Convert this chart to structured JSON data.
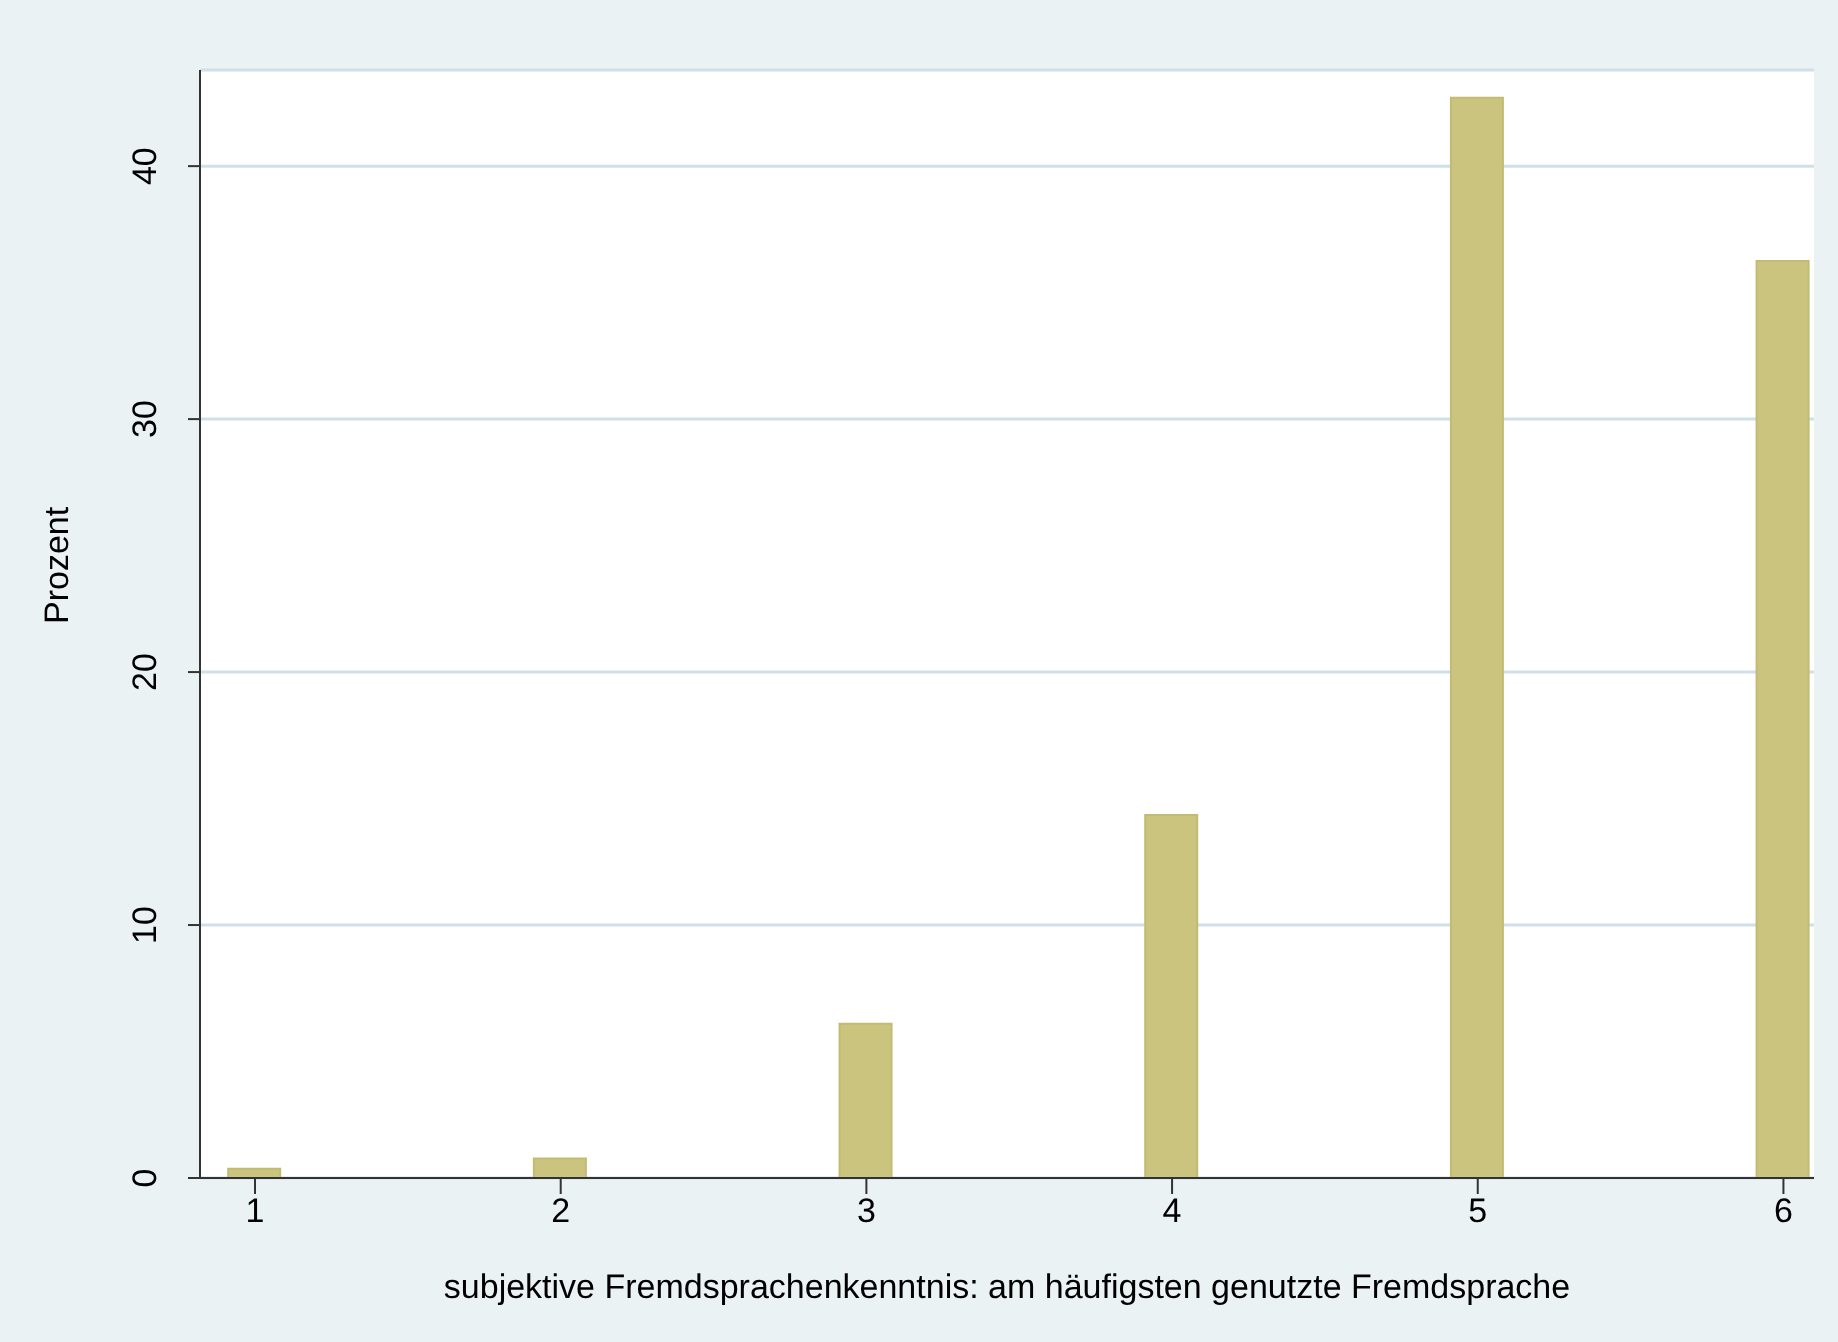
{
  "chart_data": {
    "type": "bar",
    "xlabel": "subjektive Fremdsprachenkenntnis: am häufigsten genutzte Fremdsprache",
    "ylabel": "Prozent",
    "x": [
      1,
      2,
      3,
      4,
      5,
      6
    ],
    "values": [
      0.37,
      0.77,
      6.1,
      14.35,
      42.7,
      36.25
    ],
    "color": "#cbc47f",
    "xlim": [
      0.82,
      6.1
    ],
    "xticks": [
      1,
      2,
      3,
      4,
      5,
      6
    ],
    "ylim": [
      0,
      43.8
    ],
    "yticks": [
      0,
      10,
      20,
      30,
      40
    ],
    "grid": "y"
  }
}
